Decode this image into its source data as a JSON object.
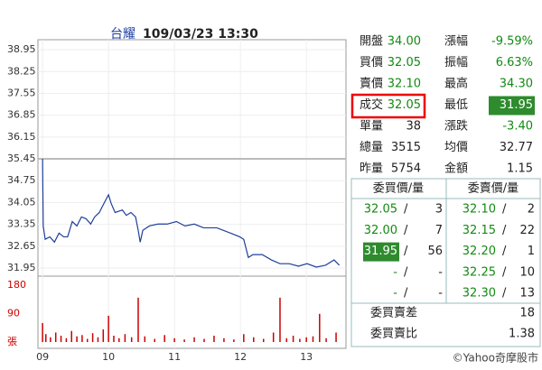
{
  "chart_data": [
    {
      "type": "line",
      "title": "台耀",
      "subtitle": "109/03/23 13:30",
      "color": "#1f3f9a",
      "reference_line": 35.45,
      "reference_color": "#bbbbbb",
      "x": [
        9,
        9.01,
        9.04,
        9.11,
        9.18,
        9.25,
        9.32,
        9.38,
        9.45,
        9.52,
        9.59,
        9.66,
        9.73,
        9.79,
        9.86,
        9.93,
        10,
        10.04,
        10.1,
        10.21,
        10.27,
        10.34,
        10.41,
        10.45,
        10.48,
        10.52,
        10.62,
        10.75,
        10.89,
        11.03,
        11.16,
        11.3,
        11.44,
        11.64,
        11.85,
        11.99,
        12.05,
        12.12,
        12.19,
        12.33,
        12.47,
        12.6,
        12.74,
        12.88,
        13.01,
        13.15,
        13.29,
        13.42,
        13.5
      ],
      "values": [
        35.45,
        33.3,
        32.87,
        32.95,
        32.78,
        33.07,
        32.95,
        32.95,
        33.44,
        33.3,
        33.59,
        33.53,
        33.36,
        33.59,
        33.73,
        34.02,
        34.3,
        34.02,
        33.73,
        33.81,
        33.64,
        33.73,
        33.59,
        33.16,
        32.78,
        33.16,
        33.3,
        33.36,
        33.36,
        33.44,
        33.3,
        33.36,
        33.24,
        33.24,
        33.07,
        32.95,
        32.87,
        32.29,
        32.38,
        32.38,
        32.21,
        32.09,
        32.09,
        32.01,
        32.09,
        31.98,
        32.04,
        32.21,
        32.04
      ],
      "xlim": [
        8.93,
        13.6
      ],
      "ylim": [
        31.69,
        39.27
      ],
      "yticks": [
        38.95,
        38.25,
        37.55,
        36.85,
        36.15,
        35.45,
        34.75,
        34.05,
        33.35,
        32.65,
        31.95
      ],
      "grid": true
    },
    {
      "type": "bar",
      "color": "#cc0000",
      "x": [
        9,
        9.05,
        9.12,
        9.2,
        9.28,
        9.36,
        9.44,
        9.52,
        9.6,
        9.68,
        9.76,
        9.84,
        9.92,
        10,
        10.08,
        10.16,
        10.25,
        10.35,
        10.45,
        10.55,
        10.7,
        10.85,
        11,
        11.15,
        11.3,
        11.45,
        11.6,
        11.75,
        11.9,
        12.05,
        12.2,
        12.35,
        12.5,
        12.6,
        12.7,
        12.8,
        12.9,
        13,
        13.1,
        13.2,
        13.3,
        13.45
      ],
      "values": [
        60,
        25,
        15,
        30,
        20,
        12,
        35,
        18,
        22,
        10,
        28,
        15,
        40,
        83,
        20,
        12,
        25,
        15,
        140,
        18,
        10,
        22,
        12,
        8,
        15,
        10,
        20,
        12,
        8,
        25,
        15,
        10,
        30,
        140,
        12,
        20,
        10,
        15,
        18,
        89,
        12,
        30
      ],
      "xlim": [
        8.93,
        13.6
      ],
      "ylim": [
        0,
        208
      ],
      "yticks": [
        {
          "value": 0,
          "label": "張"
        },
        90,
        180
      ],
      "xticks": [
        {
          "value": 9,
          "label": "09"
        },
        10,
        11,
        12,
        13
      ]
    }
  ],
  "quote": {
    "rows": [
      [
        "開盤",
        "34.00",
        "漲幅",
        "-9.59%"
      ],
      [
        "買價",
        "32.05",
        "振幅",
        "6.63%"
      ],
      [
        "賣價",
        "32.10",
        "最高",
        "34.30"
      ],
      [
        "成交",
        "32.05",
        "最低",
        "31.95"
      ],
      [
        "單量",
        "38",
        "漲跌",
        "-3.40"
      ],
      [
        "總量",
        "3515",
        "均價",
        "32.77"
      ],
      [
        "昨量",
        "5754",
        "金額",
        "1.15"
      ]
    ]
  },
  "order_book": {
    "header": [
      "委買價/量",
      "委賣價/量"
    ],
    "rows": [
      [
        "32.05",
        "3",
        "32.10",
        "2"
      ],
      [
        "32.00",
        "7",
        "32.15",
        "22"
      ],
      [
        "31.95",
        "56",
        "32.20",
        "1"
      ],
      [
        "-",
        "-",
        "32.25",
        "10"
      ],
      [
        "-",
        "-",
        "32.30",
        "13"
      ]
    ],
    "summary": [
      [
        "委買賣差",
        "18"
      ],
      [
        "委買賣比",
        "1.38"
      ]
    ]
  },
  "footer": "©Yahoo奇摩股市"
}
